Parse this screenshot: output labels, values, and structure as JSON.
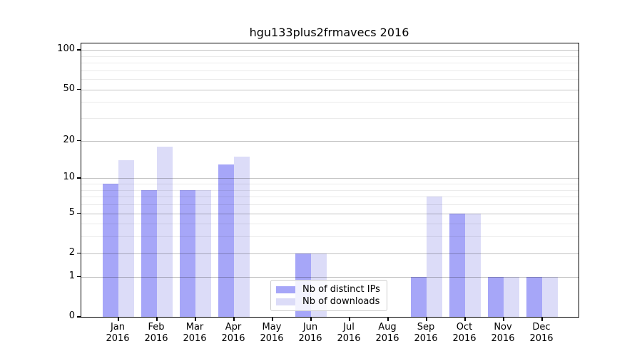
{
  "title": "hgu133plus2frmavecs 2016",
  "chart_data": {
    "type": "bar",
    "title": "hgu133plus2frmavecs 2016",
    "xlabel": "",
    "ylabel": "",
    "categories": [
      "Jan",
      "Feb",
      "Mar",
      "Apr",
      "May",
      "Jun",
      "Jul",
      "Aug",
      "Sep",
      "Oct",
      "Nov",
      "Dec"
    ],
    "category_year": "2016",
    "series": [
      {
        "name": "Nb of distinct IPs",
        "color": "#a6a6f8",
        "values": [
          9,
          8,
          8,
          13,
          0,
          2,
          0,
          0,
          1,
          5,
          1,
          1
        ]
      },
      {
        "name": "Nb of downloads",
        "color": "#dcdcf8",
        "values": [
          14,
          18,
          8,
          15,
          0,
          2,
          0,
          0,
          7,
          5,
          1,
          1
        ]
      }
    ],
    "y_scale": "log10(1+v)",
    "y_ticks": [
      0,
      1,
      2,
      5,
      10,
      20,
      50,
      100
    ],
    "y_minor_gridlines": [
      3,
      4,
      6,
      7,
      8,
      9,
      30,
      40,
      60,
      70,
      80,
      90
    ],
    "ylim": [
      0,
      112
    ],
    "grid": "horizontal",
    "legend_position": "bottom-center-inside"
  },
  "legend": {
    "items": [
      "Nb of distinct IPs",
      "Nb of downloads"
    ]
  }
}
